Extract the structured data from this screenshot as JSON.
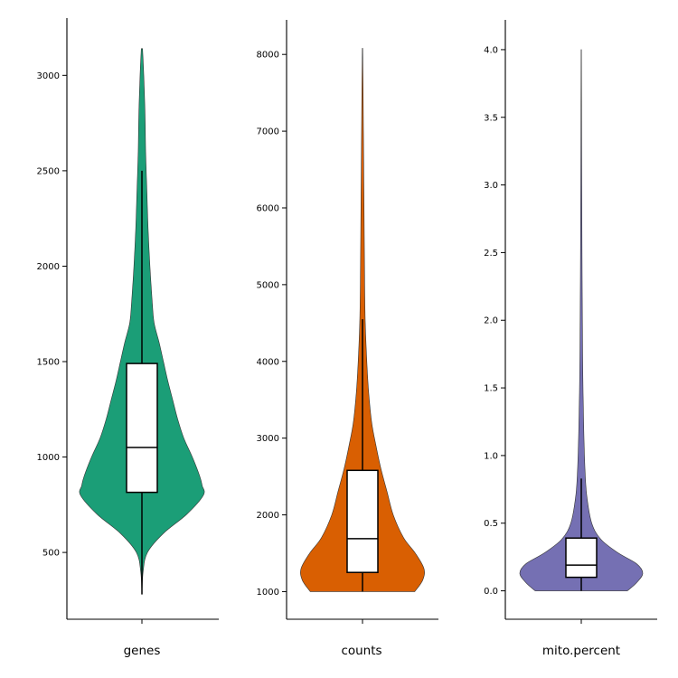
{
  "chart_data": [
    {
      "type": "violin",
      "category": "genes",
      "color": "#1b9e77",
      "ylim": [
        150,
        3300
      ],
      "yticks": [
        500,
        1000,
        1500,
        2000,
        2500,
        3000
      ],
      "range": [
        280,
        3140
      ],
      "box": {
        "whisker_low": 280,
        "q1": 815,
        "median": 1050,
        "q3": 1490,
        "whisker_high": 2500
      },
      "density": [
        [
          280,
          0.0
        ],
        [
          400,
          0.02
        ],
        [
          500,
          0.09
        ],
        [
          600,
          0.35
        ],
        [
          700,
          0.73
        ],
        [
          800,
          1.0
        ],
        [
          850,
          0.98
        ],
        [
          900,
          0.94
        ],
        [
          1000,
          0.82
        ],
        [
          1100,
          0.68
        ],
        [
          1200,
          0.58
        ],
        [
          1300,
          0.5
        ],
        [
          1400,
          0.42
        ],
        [
          1500,
          0.35
        ],
        [
          1600,
          0.28
        ],
        [
          1700,
          0.2
        ],
        [
          1800,
          0.17
        ],
        [
          2000,
          0.13
        ],
        [
          2200,
          0.1
        ],
        [
          2400,
          0.08
        ],
        [
          2600,
          0.06
        ],
        [
          2800,
          0.05
        ],
        [
          3000,
          0.03
        ],
        [
          3140,
          0.01
        ]
      ]
    },
    {
      "type": "violin",
      "category": "counts",
      "color": "#d95f02",
      "ylim": [
        640,
        8450
      ],
      "yticks": [
        1000,
        2000,
        3000,
        4000,
        5000,
        6000,
        7000,
        8000
      ],
      "range": [
        1000,
        8080
      ],
      "box": {
        "whisker_low": 1000,
        "q1": 1250,
        "median": 1690,
        "q3": 2580,
        "whisker_high": 4550
      },
      "density": [
        [
          1000,
          0.85
        ],
        [
          1150,
          0.98
        ],
        [
          1300,
          1.0
        ],
        [
          1500,
          0.86
        ],
        [
          1700,
          0.67
        ],
        [
          2000,
          0.5
        ],
        [
          2300,
          0.4
        ],
        [
          2600,
          0.3
        ],
        [
          2900,
          0.22
        ],
        [
          3200,
          0.15
        ],
        [
          3600,
          0.1
        ],
        [
          4000,
          0.07
        ],
        [
          4500,
          0.045
        ],
        [
          5000,
          0.035
        ],
        [
          6000,
          0.025
        ],
        [
          7000,
          0.015
        ],
        [
          7500,
          0.01
        ],
        [
          8080,
          0.003
        ]
      ]
    },
    {
      "type": "violin",
      "category": "mito.percent",
      "color": "#7570b3",
      "ylim": [
        -0.21,
        4.22
      ],
      "yticks": [
        0.0,
        0.5,
        1.0,
        1.5,
        2.0,
        2.5,
        3.0,
        3.5,
        4.0
      ],
      "range": [
        0.0,
        4.0
      ],
      "box": {
        "whisker_low": 0.0,
        "q1": 0.1,
        "median": 0.19,
        "q3": 0.39,
        "whisker_high": 0.83
      },
      "density": [
        [
          0.0,
          0.75
        ],
        [
          0.06,
          0.9
        ],
        [
          0.13,
          1.0
        ],
        [
          0.2,
          0.9
        ],
        [
          0.28,
          0.6
        ],
        [
          0.38,
          0.32
        ],
        [
          0.5,
          0.17
        ],
        [
          0.7,
          0.09
        ],
        [
          0.9,
          0.06
        ],
        [
          1.2,
          0.04
        ],
        [
          1.6,
          0.025
        ],
        [
          2.0,
          0.018
        ],
        [
          2.5,
          0.012
        ],
        [
          3.0,
          0.008
        ],
        [
          3.5,
          0.005
        ],
        [
          4.0,
          0.002
        ]
      ]
    }
  ],
  "xlabels": [
    "genes",
    "counts",
    "mito.percent"
  ]
}
